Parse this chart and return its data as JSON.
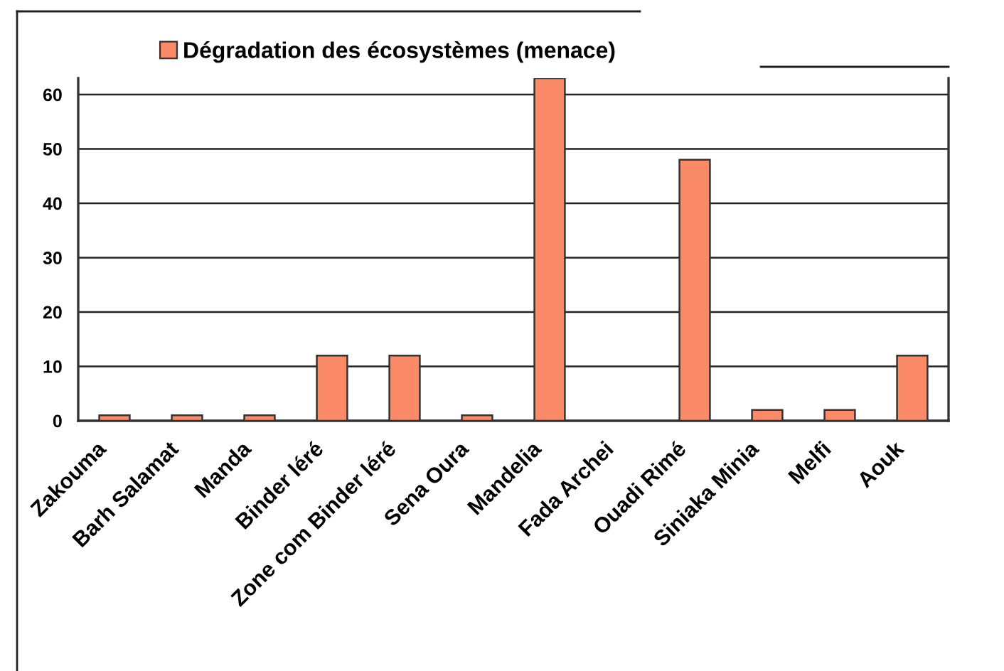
{
  "chart_data": {
    "type": "bar",
    "categories": [
      "Zakouma",
      "Barh Salamat",
      "Manda",
      "Binder léré",
      "Zone com Binder léré",
      "Sena Oura",
      "Mandelia",
      "Fada Archei",
      "Ouadi Rimé",
      "Siniaka Minia",
      "Melfi",
      "Aouk"
    ],
    "series": [
      {
        "name": "Dégradation des écosystèmes (menace)",
        "color": "#fb8a68",
        "values": [
          1,
          1,
          1,
          12,
          12,
          1,
          63,
          null,
          48,
          2,
          2,
          12
        ]
      }
    ],
    "ylim": [
      0,
      63
    ],
    "yticks": [
      0,
      10,
      20,
      30,
      40,
      50,
      60
    ],
    "grid": "y",
    "legend": "top"
  }
}
